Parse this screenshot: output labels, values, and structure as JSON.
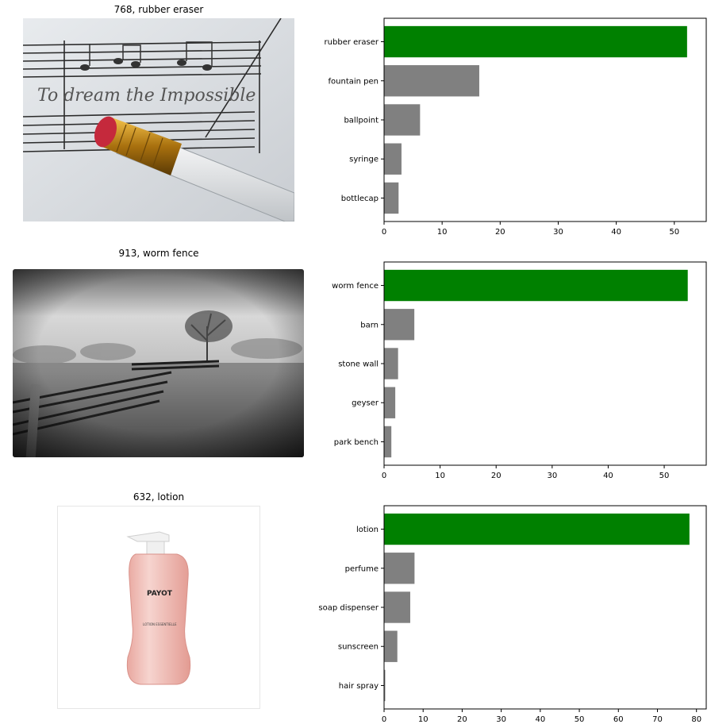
{
  "panels": [
    {
      "title": "768, rubber eraser",
      "image": "music-sheet-pencil-eraser-photo"
    },
    {
      "title": "913, worm fence",
      "image": "foggy-field-fence-tree-photo"
    },
    {
      "title": "632, lotion",
      "image": "payot-lotion-bottle-photo",
      "bottle_text": {
        "brand": "PAYOT",
        "product": "LOTION ESSENTIELLE"
      }
    }
  ],
  "colors": {
    "top": "#008000",
    "other": "#808080"
  },
  "chart_data": [
    {
      "type": "bar",
      "orientation": "horizontal",
      "categories": [
        "rubber eraser",
        "fountain pen",
        "ballpoint",
        "syringe",
        "bottlecap"
      ],
      "values": [
        52.2,
        16.4,
        6.2,
        3.0,
        2.5
      ],
      "xlim": [
        0,
        55.5
      ],
      "xticks": [
        0,
        10,
        20,
        30,
        40,
        50
      ]
    },
    {
      "type": "bar",
      "orientation": "horizontal",
      "categories": [
        "worm fence",
        "barn",
        "stone wall",
        "geyser",
        "park bench"
      ],
      "values": [
        54.2,
        5.4,
        2.5,
        2.0,
        1.3
      ],
      "xlim": [
        0,
        57.5
      ],
      "xticks": [
        0,
        10,
        20,
        30,
        40,
        50
      ]
    },
    {
      "type": "bar",
      "orientation": "horizontal",
      "categories": [
        "lotion",
        "perfume",
        "soap dispenser",
        "sunscreen",
        "hair spray"
      ],
      "values": [
        78.2,
        7.8,
        6.7,
        3.4,
        0.3
      ],
      "xlim": [
        0,
        82.5
      ],
      "xticks": [
        0,
        10,
        20,
        30,
        40,
        50,
        60,
        70,
        80
      ]
    }
  ]
}
